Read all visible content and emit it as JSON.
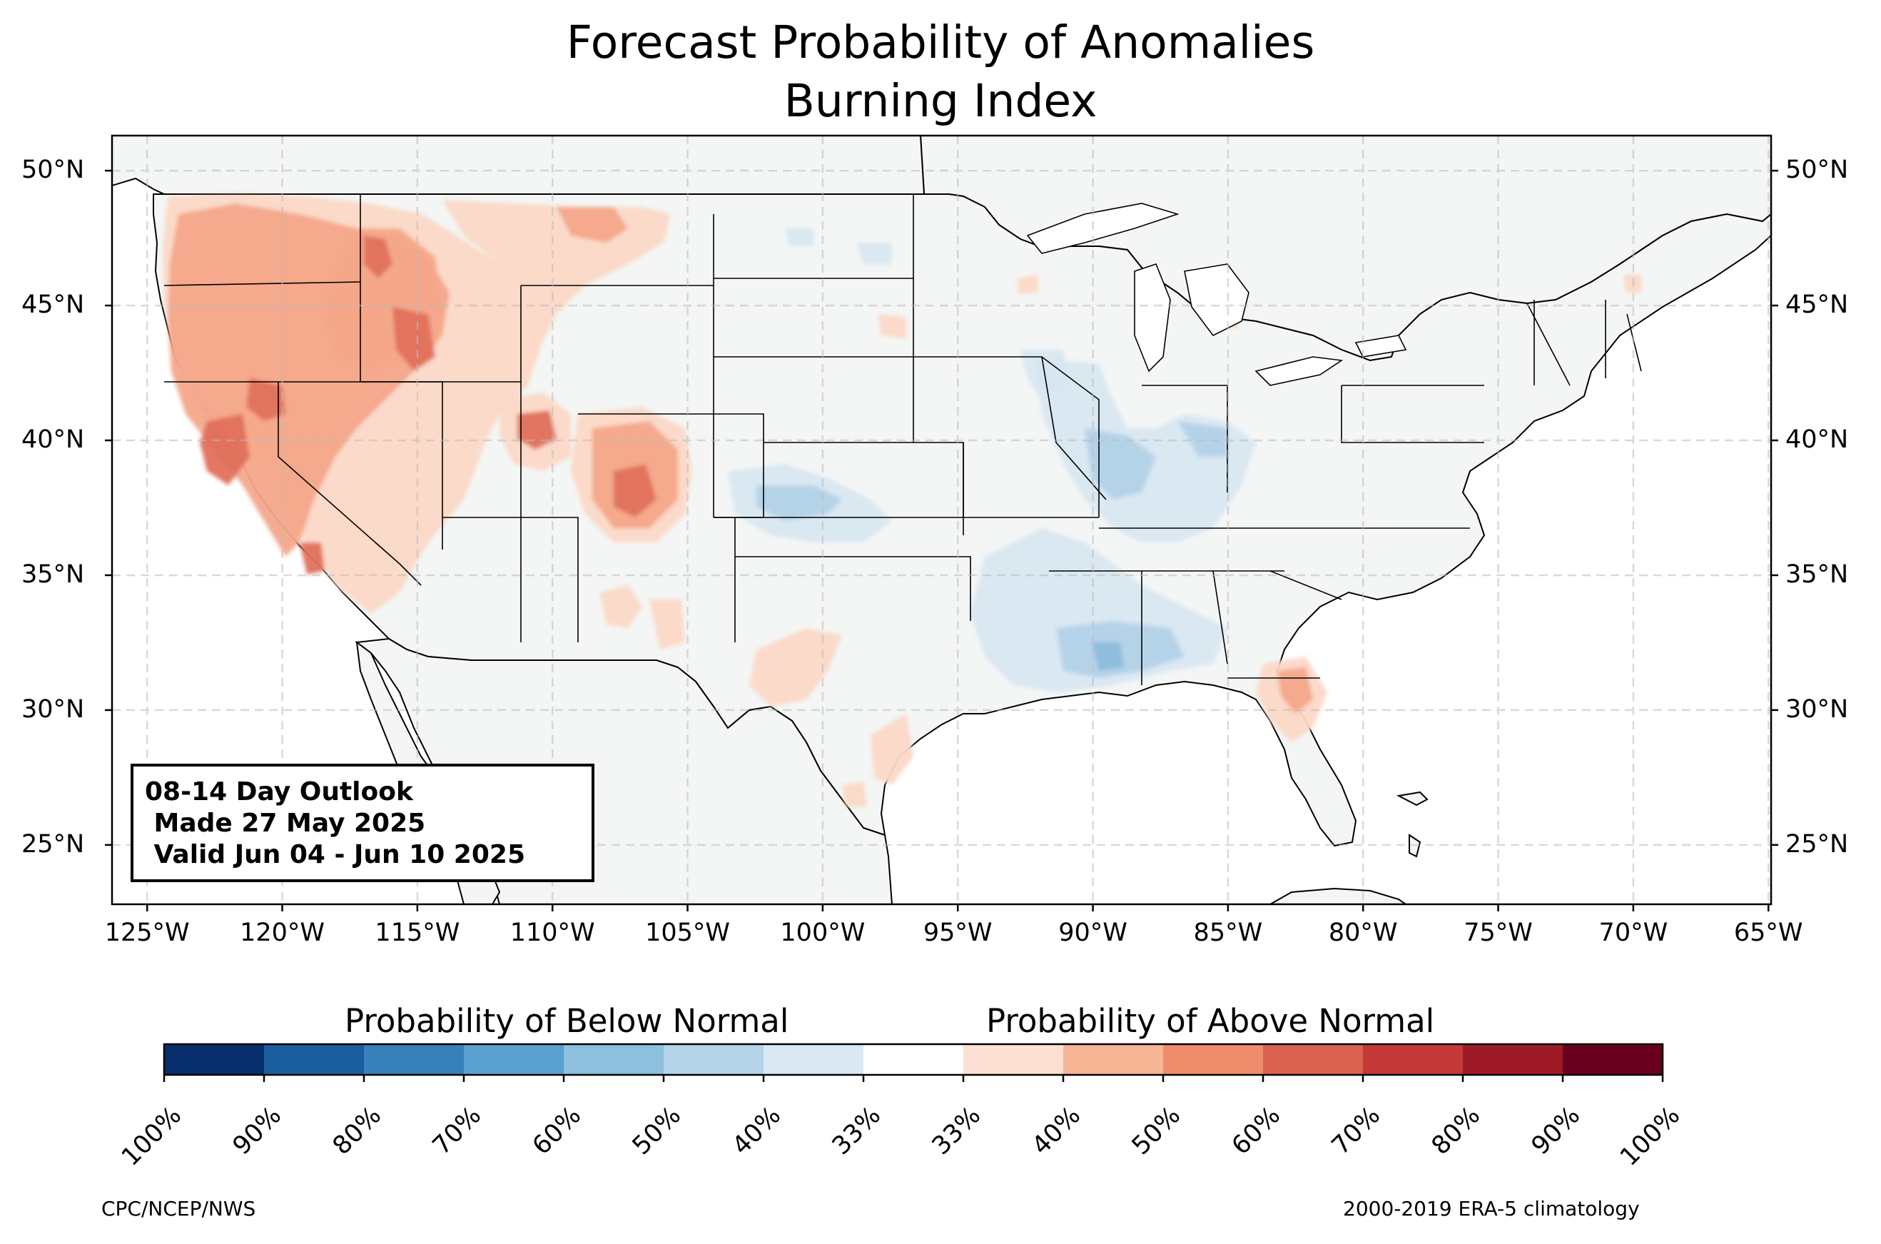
{
  "title": {
    "line1": "Forecast Probability of Anomalies",
    "line2": "Burning Index"
  },
  "map": {
    "region": "Contiguous United States",
    "lon_range": [
      -126.3,
      -64.9
    ],
    "lat_range": [
      22.8,
      51.3
    ],
    "lat_ticks": [
      "50°N",
      "45°N",
      "40°N",
      "35°N",
      "30°N",
      "25°N"
    ],
    "lon_ticks": [
      "125°W",
      "120°W",
      "115°W",
      "110°W",
      "105°W",
      "100°W",
      "95°W",
      "90°W",
      "85°W",
      "80°W",
      "75°W",
      "70°W",
      "65°W"
    ],
    "grid": true,
    "colors": {
      "land": "#f4f6f5",
      "above_40": "#fbd8c6",
      "above_50": "#f4a78a",
      "above_60": "#e0705b",
      "below_40": "#d8e7f1",
      "below_50": "#b3d3e8",
      "below_60": "#8cbcdc"
    }
  },
  "outlook_box": {
    "line1": "08-14 Day Outlook",
    "line2": " Made 27 May 2025",
    "line3": " Valid Jun 04 - Jun 10 2025"
  },
  "colorbar": {
    "label_below": "Probability of Below Normal",
    "label_above": "Probability of Above Normal",
    "below_colors": [
      "#072f6b",
      "#1b5e9f",
      "#3681ba",
      "#5aa1cf",
      "#8cc0dd",
      "#b5d4e9",
      "#d9e8f3"
    ],
    "above_colors": [
      "#fde0d3",
      "#f7b596",
      "#ef8c6b",
      "#da6350",
      "#c23938",
      "#9f1a27",
      "#6a0020"
    ],
    "neutral_color": "#ffffff",
    "ticks": [
      "100%",
      "90%",
      "80%",
      "70%",
      "60%",
      "50%",
      "40%",
      "33%",
      "33%",
      "40%",
      "50%",
      "60%",
      "70%",
      "80%",
      "90%",
      "100%"
    ]
  },
  "footer": {
    "left": "CPC/NCEP/NWS",
    "right": "2000-2019 ERA-5 climatology"
  }
}
